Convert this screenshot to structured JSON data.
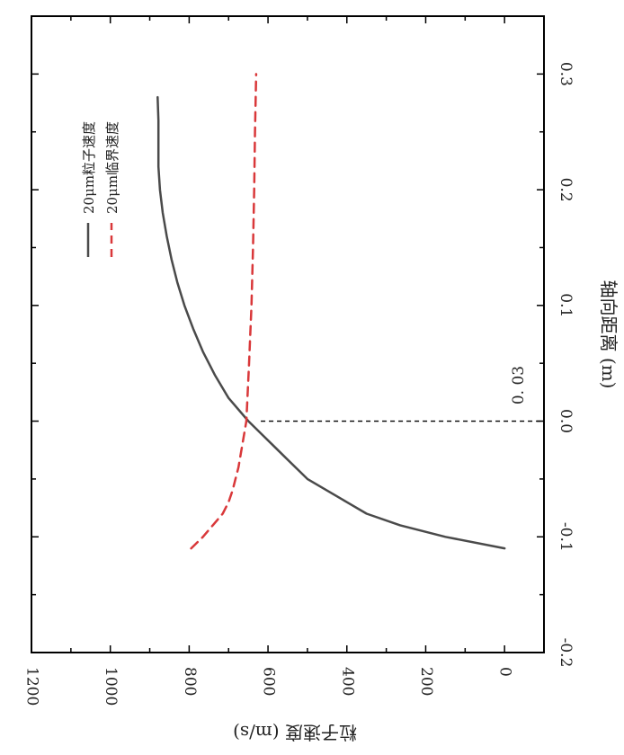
{
  "chart_data": {
    "type": "line",
    "orientation": "rotated-90-clockwise",
    "xlabel": "轴向距离 (m)",
    "ylabel": "粒子速度 (m/s)",
    "xlim": [
      -0.2,
      0.35
    ],
    "ylim": [
      -100,
      1200
    ],
    "x_ticks": [
      "-0.2",
      "-0.1",
      "0.0",
      "0.1",
      "0.2",
      "0.3"
    ],
    "y_ticks": [
      "0",
      "200",
      "400",
      "600",
      "800",
      "1000",
      "1200"
    ],
    "grid": false,
    "legend_position": "top-left",
    "annotations": [
      {
        "text": "0. 03",
        "x": 0.0,
        "y": 600
      }
    ],
    "series": [
      {
        "name": "20μm粒子速度",
        "color": "#4a4a4a",
        "style": "solid",
        "x": [
          -0.11,
          -0.1,
          -0.09,
          -0.08,
          -0.07,
          -0.05,
          -0.03,
          -0.02,
          -0.01,
          0.0,
          0.02,
          0.04,
          0.06,
          0.08,
          0.1,
          0.12,
          0.14,
          0.16,
          0.18,
          0.2,
          0.22,
          0.24,
          0.26,
          0.28
        ],
        "y": [
          0,
          150,
          265,
          350,
          400,
          500,
          560,
          590,
          620,
          650,
          700,
          735,
          765,
          790,
          812,
          830,
          845,
          857,
          867,
          874,
          878,
          878,
          878,
          880
        ]
      },
      {
        "name": "20μm临界速度",
        "color": "#d9383a",
        "style": "dashed",
        "x": [
          -0.11,
          -0.1,
          -0.09,
          -0.08,
          -0.07,
          -0.06,
          -0.04,
          -0.02,
          0.0,
          0.05,
          0.1,
          0.15,
          0.2,
          0.25,
          0.3
        ],
        "y": [
          795,
          765,
          740,
          715,
          700,
          690,
          675,
          665,
          655,
          648,
          642,
          638,
          635,
          633,
          630
        ]
      }
    ]
  }
}
